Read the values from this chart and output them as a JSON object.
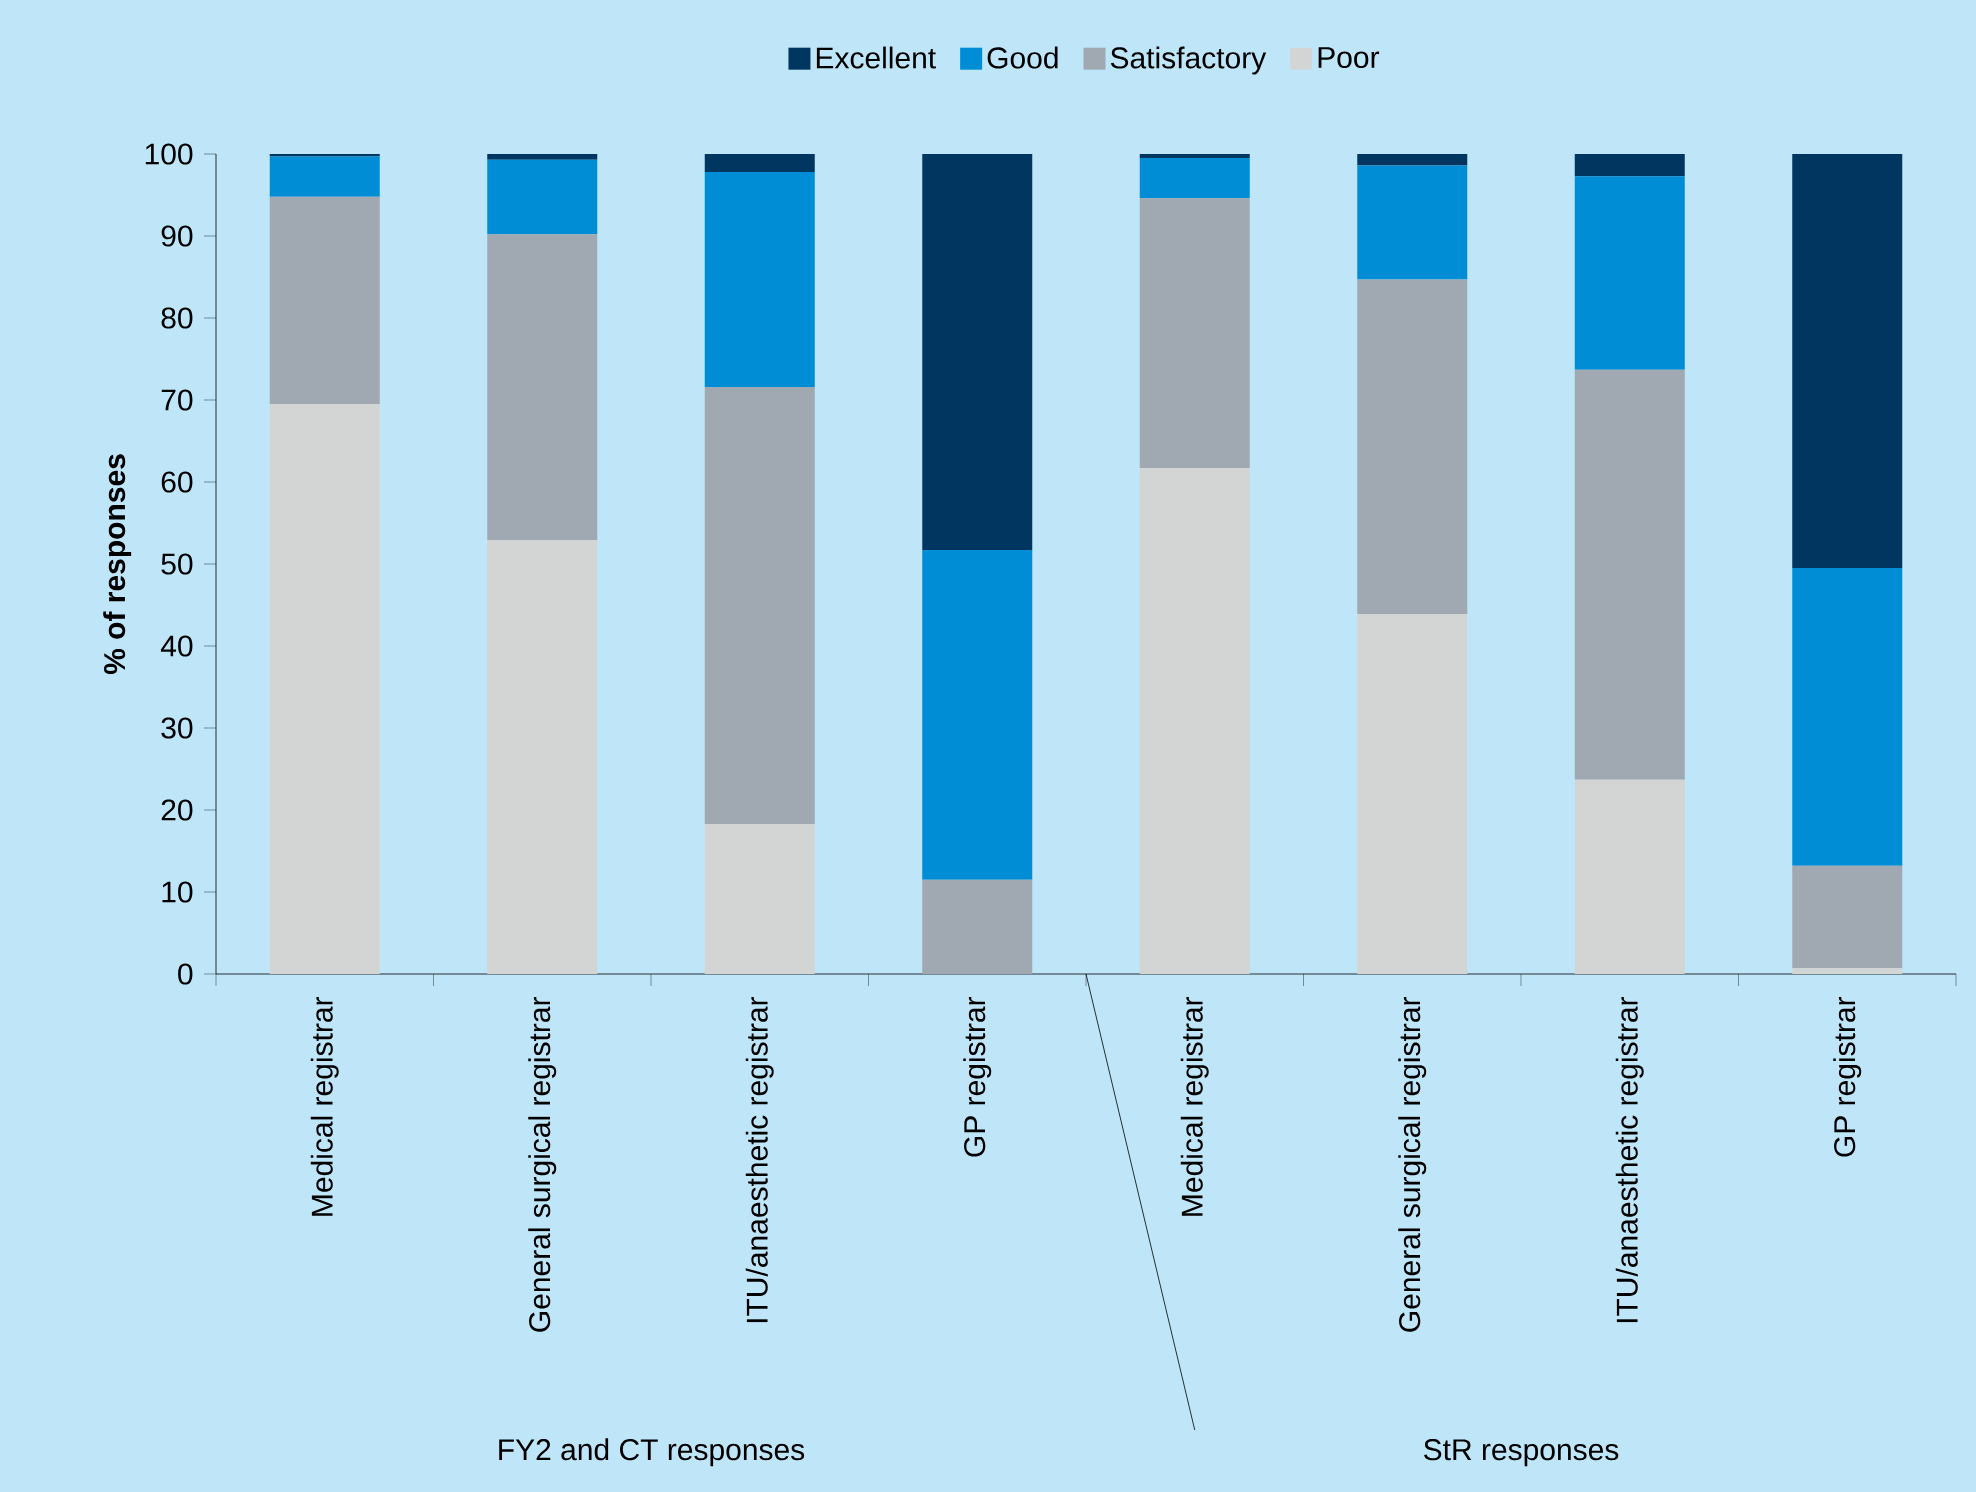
{
  "chart_data": {
    "type": "bar",
    "stacked": true,
    "ylabel": "% of responses",
    "legend": "top",
    "ylim": [
      0,
      100
    ],
    "yticks": [
      0,
      10,
      20,
      30,
      40,
      50,
      60,
      70,
      80,
      90,
      100
    ],
    "categories": [
      "Medical registrar",
      "General surgical registrar",
      "ITU/anaesthetic registrar",
      "GP registrar",
      "Medical registrar",
      "General surgical registrar",
      "ITU/anaesthetic registrar",
      "GP registrar"
    ],
    "series": [
      {
        "name": "Poor",
        "color": "#d3d5d5",
        "values": [
          69.5,
          52.9,
          18.3,
          0,
          61.7,
          43.9,
          23.7,
          0.7
        ]
      },
      {
        "name": "Satisfactory",
        "color": "#a0a9b1",
        "values": [
          25.3,
          37.3,
          53.3,
          11.5,
          32.9,
          40.8,
          50,
          12.5
        ]
      },
      {
        "name": "Good",
        "color": "#008dd5",
        "values": [
          4.9,
          9.1,
          26.2,
          40.2,
          4.9,
          13.9,
          23.6,
          36.3
        ]
      },
      {
        "name": "Excellent",
        "color": "#00365f",
        "values": [
          0.3,
          0.7,
          2.2,
          48.3,
          0.5,
          1.4,
          2.7,
          50.5
        ]
      }
    ],
    "annotations": [
      "FY2 and CT responses",
      "StR responses"
    ]
  }
}
